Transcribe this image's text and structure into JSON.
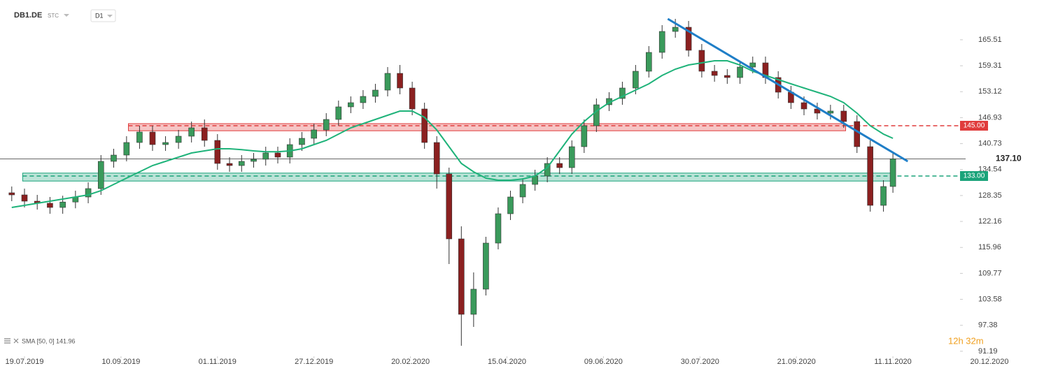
{
  "chart_data": {
    "type": "candlestick",
    "symbol": "DB1.DE",
    "market": "STC",
    "interval": "D1",
    "indicator_label": "SMA [50, 0] 141.96",
    "timer": "12h 32m",
    "ylim": [
      90.0,
      175.0
    ],
    "yticks": [
      165.51,
      159.31,
      153.12,
      146.93,
      140.73,
      134.54,
      128.35,
      122.16,
      115.96,
      109.77,
      103.58,
      97.38,
      91.19
    ],
    "xticks": [
      "19.07.2019",
      "10.09.2019",
      "01.11.2019",
      "27.12.2019",
      "20.02.2020",
      "15.04.2020",
      "09.06.2020",
      "30.07.2020",
      "21.09.2020",
      "11.11.2020",
      "20.12.2020"
    ],
    "up_color": "#3a9a5b",
    "down_color": "#8b2020",
    "candles": {
      "x": [
        "12.07.2019",
        "19.07.2019",
        "26.07.2019",
        "02.08.2019",
        "09.08.2019",
        "16.08.2019",
        "23.08.2019",
        "30.08.2019",
        "06.09.2019",
        "13.09.2019",
        "20.09.2019",
        "27.09.2019",
        "04.10.2019",
        "11.10.2019",
        "18.10.2019",
        "25.10.2019",
        "01.11.2019",
        "08.11.2019",
        "15.11.2019",
        "22.11.2019",
        "29.11.2019",
        "06.12.2019",
        "13.12.2019",
        "20.12.2019",
        "27.12.2019",
        "03.01.2020",
        "10.01.2020",
        "17.01.2020",
        "24.01.2020",
        "31.01.2020",
        "07.02.2020",
        "14.02.2020",
        "21.02.2020",
        "28.02.2020",
        "06.03.2020",
        "13.03.2020",
        "20.03.2020",
        "27.03.2020",
        "03.04.2020",
        "10.04.2020",
        "17.04.2020",
        "24.04.2020",
        "01.05.2020",
        "08.05.2020",
        "15.05.2020",
        "22.05.2020",
        "29.05.2020",
        "05.06.2020",
        "12.06.2020",
        "19.06.2020",
        "26.06.2020",
        "03.07.2020",
        "10.07.2020",
        "17.07.2020",
        "24.07.2020",
        "31.07.2020",
        "07.08.2020",
        "14.08.2020",
        "21.08.2020",
        "28.08.2020",
        "04.09.2020",
        "11.09.2020",
        "18.09.2020",
        "25.09.2020",
        "02.10.2020",
        "09.10.2020",
        "16.10.2020",
        "23.10.2020",
        "30.10.2020",
        "06.11.2020",
        "11.11.2020"
      ],
      "open": [
        129.0,
        128.5,
        127.0,
        126.5,
        125.5,
        126.8,
        128.0,
        130.0,
        136.5,
        138.0,
        141.0,
        143.5,
        140.5,
        141.0,
        142.5,
        144.5,
        141.5,
        136.0,
        135.5,
        136.5,
        137.0,
        138.5,
        137.5,
        140.5,
        142.0,
        144.0,
        146.5,
        149.5,
        150.5,
        152.0,
        153.5,
        157.5,
        154.0,
        149.0,
        141.0,
        133.5,
        118.0,
        100.0,
        106.0,
        117.0,
        124.0,
        128.0,
        131.0,
        133.0,
        136.0,
        135.0,
        140.0,
        145.0,
        150.0,
        151.5,
        154.0,
        158.0,
        162.5,
        167.5,
        168.5,
        163.0,
        158.0,
        157.0,
        156.5,
        159.0,
        160.0,
        156.5,
        153.0,
        150.5,
        149.0,
        148.0,
        148.5,
        146.0,
        140.0,
        126.0,
        130.5
      ],
      "high": [
        130.5,
        130.0,
        128.5,
        128.0,
        128.3,
        129.5,
        131.5,
        138.0,
        139.5,
        142.5,
        145.0,
        145.0,
        142.5,
        144.0,
        146.0,
        146.5,
        143.0,
        137.5,
        138.0,
        138.5,
        140.0,
        140.0,
        142.0,
        143.5,
        145.5,
        148.0,
        151.0,
        152.0,
        153.5,
        155.0,
        159.0,
        159.5,
        155.5,
        150.5,
        142.5,
        135.0,
        121.0,
        110.0,
        118.5,
        125.5,
        129.5,
        132.5,
        134.5,
        137.5,
        137.5,
        141.5,
        146.5,
        151.5,
        153.0,
        155.5,
        159.5,
        164.0,
        169.0,
        170.5,
        170.0,
        164.5,
        159.5,
        158.5,
        160.5,
        161.5,
        161.5,
        158.0,
        154.5,
        152.0,
        150.5,
        150.0,
        150.0,
        147.5,
        141.5,
        132.0,
        138.5
      ],
      "low": [
        127.0,
        125.5,
        125.0,
        124.0,
        124.0,
        125.3,
        126.5,
        128.5,
        135.0,
        136.5,
        139.5,
        139.0,
        139.0,
        139.5,
        141.0,
        140.0,
        134.5,
        134.0,
        134.0,
        135.0,
        135.5,
        136.0,
        136.0,
        139.0,
        140.5,
        142.5,
        145.0,
        148.0,
        149.0,
        150.5,
        152.0,
        152.5,
        147.5,
        139.5,
        130.0,
        112.0,
        92.5,
        97.0,
        104.5,
        115.5,
        122.5,
        126.5,
        129.5,
        131.5,
        133.5,
        133.5,
        138.5,
        143.5,
        148.5,
        150.0,
        152.5,
        156.5,
        161.0,
        166.0,
        161.5,
        156.5,
        155.5,
        155.0,
        155.0,
        157.5,
        155.0,
        151.5,
        149.0,
        147.5,
        146.5,
        146.5,
        144.5,
        138.5,
        124.5,
        124.5,
        129.0
      ],
      "close": [
        128.5,
        127.0,
        126.5,
        125.5,
        126.8,
        128.0,
        130.0,
        136.5,
        138.0,
        141.0,
        143.5,
        140.5,
        141.0,
        142.5,
        144.5,
        141.5,
        136.0,
        135.5,
        136.5,
        137.0,
        138.5,
        137.5,
        140.5,
        142.0,
        144.0,
        146.5,
        149.5,
        150.5,
        152.0,
        153.5,
        157.5,
        154.0,
        149.0,
        141.0,
        133.5,
        118.0,
        100.0,
        106.0,
        117.0,
        124.0,
        128.0,
        131.0,
        133.0,
        136.0,
        135.0,
        140.0,
        145.0,
        150.0,
        151.5,
        154.0,
        158.0,
        162.5,
        167.5,
        168.5,
        163.0,
        158.0,
        157.0,
        156.5,
        159.0,
        160.0,
        156.5,
        153.0,
        150.5,
        149.0,
        148.0,
        148.5,
        146.0,
        140.0,
        126.0,
        130.5,
        137.1
      ]
    },
    "sma": {
      "color": "#1fb37a",
      "values": [
        125.5,
        126,
        126.5,
        127,
        127.5,
        128,
        128.5,
        129.5,
        131,
        132.5,
        134,
        135.5,
        136.5,
        137.5,
        138.5,
        139,
        139.5,
        139.5,
        139.3,
        139,
        138.8,
        138.8,
        139,
        139.5,
        140.5,
        141.5,
        143,
        144.5,
        145.5,
        146.5,
        147.5,
        148.5,
        148.5,
        147,
        144,
        140,
        136,
        134,
        132.5,
        132,
        132,
        132.3,
        133,
        135,
        139,
        143,
        146,
        148.5,
        150.5,
        152,
        153.5,
        155,
        157,
        158.5,
        159.5,
        160,
        160.5,
        160.5,
        159.5,
        158,
        157,
        156,
        155,
        154,
        153,
        152,
        150.5,
        148,
        145,
        143,
        142
      ]
    },
    "zones": [
      {
        "from": "14.09.2019",
        "to": "17.10.2020",
        "low": 143.8,
        "high": 145.5,
        "color": "#e03c3c"
      },
      {
        "from": "18.07.2019",
        "to": "11.11.2020",
        "low": 131.8,
        "high": 133.7,
        "color": "#1aa37a"
      }
    ],
    "levels": [
      {
        "value": 145,
        "label": "145.00",
        "color": "#e03c3c"
      },
      {
        "value": 133,
        "label": "133.00",
        "color": "#1aa37a"
      }
    ],
    "last_price": {
      "value": 137.1,
      "label": "137.10"
    },
    "trendline": {
      "x": [
        "13.07.2020",
        "17.11.2020"
      ],
      "values": [
        170.5,
        136.5
      ],
      "color": "#1f7ec7"
    }
  }
}
